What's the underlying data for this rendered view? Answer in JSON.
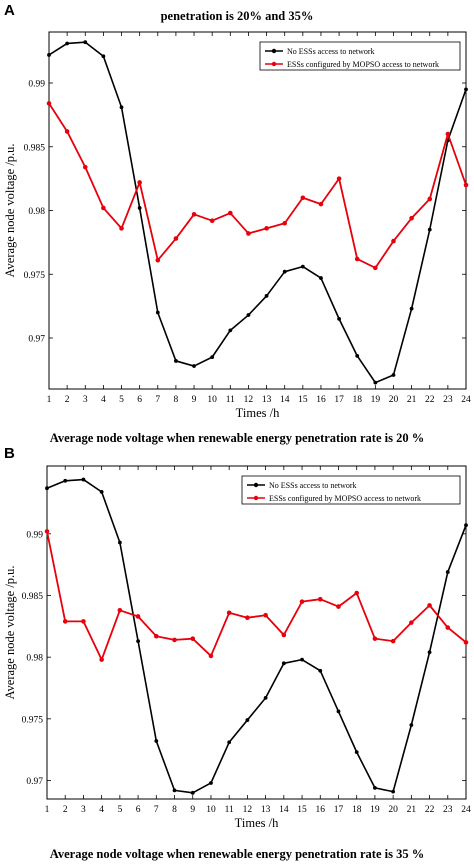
{
  "panel_a": {
    "letter": "A",
    "top_title": "penetration is 20% and 35%"
  },
  "panel_b": {
    "letter": "B"
  },
  "chart_data": [
    {
      "type": "line",
      "title": "Average node voltage when renewable energy penetration rate is 20 %",
      "xlabel": "Times /h",
      "ylabel": "Average node voltage /p.u.",
      "x": [
        1,
        2,
        3,
        4,
        5,
        6,
        7,
        8,
        9,
        10,
        11,
        12,
        13,
        14,
        15,
        16,
        17,
        18,
        19,
        20,
        21,
        22,
        23,
        24
      ],
      "xlim": [
        1,
        24
      ],
      "ylim": [
        0.966,
        0.994
      ],
      "yticks": [
        0.97,
        0.975,
        0.98,
        0.985,
        0.99
      ],
      "ytick_labels": [
        "0.97",
        "0.975",
        "0.98",
        "0.985",
        "0.99"
      ],
      "legend": "top-right",
      "grid": false,
      "series": [
        {
          "name": "No ESSs access to network",
          "color": "#000000",
          "values": [
            0.9922,
            0.9931,
            0.9932,
            0.9921,
            0.9881,
            0.9802,
            0.972,
            0.9682,
            0.9678,
            0.9685,
            0.9706,
            0.9718,
            0.9733,
            0.9752,
            0.9756,
            0.9747,
            0.9715,
            0.9686,
            0.9665,
            0.9671,
            0.9723,
            0.9785,
            0.9855,
            0.9895
          ]
        },
        {
          "name": "ESSs configured by MOPSO access to network",
          "color": "#e8000b",
          "values": [
            0.9884,
            0.9862,
            0.9834,
            0.9802,
            0.9786,
            0.9822,
            0.9761,
            0.9778,
            0.9797,
            0.9792,
            0.9798,
            0.9782,
            0.9786,
            0.979,
            0.981,
            0.9805,
            0.9825,
            0.9762,
            0.9755,
            0.9776,
            0.9794,
            0.9809,
            0.986,
            0.982
          ]
        }
      ]
    },
    {
      "type": "line",
      "title": "Average node voltage when renewable energy penetration rate is 35 %",
      "xlabel": "Times /h",
      "ylabel": "Average node voltage /p.u.",
      "x": [
        1,
        2,
        3,
        4,
        5,
        6,
        7,
        8,
        9,
        10,
        11,
        12,
        13,
        14,
        15,
        16,
        17,
        18,
        19,
        20,
        21,
        22,
        23,
        24
      ],
      "xlim": [
        1,
        24
      ],
      "ylim": [
        0.9685,
        0.9955
      ],
      "yticks": [
        0.97,
        0.975,
        0.98,
        0.985,
        0.99
      ],
      "ytick_labels": [
        "0.97",
        "0.975",
        "0.98",
        "0.985",
        "0.99"
      ],
      "legend": "top-right",
      "grid": false,
      "series": [
        {
          "name": "No ESSs access to network",
          "color": "#000000",
          "values": [
            0.9937,
            0.9943,
            0.9944,
            0.9934,
            0.9893,
            0.9813,
            0.9732,
            0.9692,
            0.969,
            0.9698,
            0.9731,
            0.9749,
            0.9767,
            0.9795,
            0.9798,
            0.9789,
            0.9756,
            0.9723,
            0.9694,
            0.9691,
            0.9745,
            0.9804,
            0.9869,
            0.9907
          ]
        },
        {
          "name": "ESSs configured by MOPSO access to network",
          "color": "#e8000b",
          "values": [
            0.9902,
            0.9829,
            0.9829,
            0.9798,
            0.9838,
            0.9833,
            0.9817,
            0.9814,
            0.9815,
            0.9801,
            0.9836,
            0.9832,
            0.9834,
            0.9818,
            0.9845,
            0.9847,
            0.9841,
            0.9852,
            0.9815,
            0.9813,
            0.9828,
            0.9842,
            0.9824,
            0.9812
          ]
        }
      ]
    }
  ]
}
